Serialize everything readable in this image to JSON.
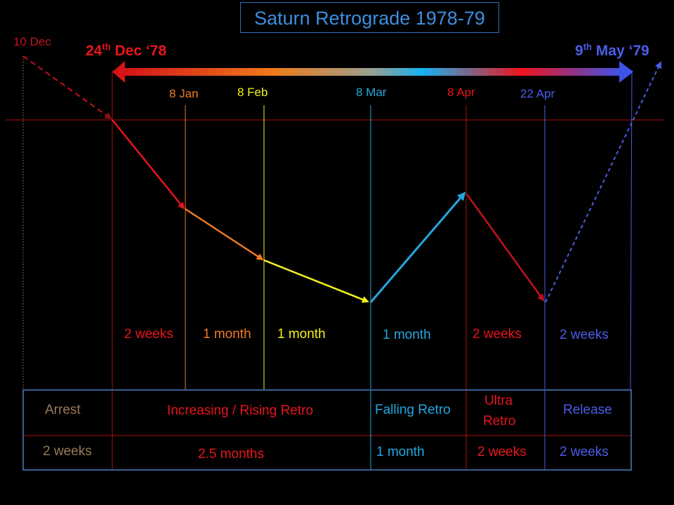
{
  "title": "Saturn Retrograde 1978-79",
  "start_label": "10 Dec",
  "arrow": {
    "left_day": "24",
    "left_sup": "th",
    "left_rest": " Dec ‘78",
    "right_day": "9",
    "right_sup": "th",
    "right_rest": " May ‘79"
  },
  "dates": [
    "8 Jan",
    "8 Feb",
    "8 Mar",
    "8 Apr",
    "22 Apr"
  ],
  "durations": [
    "2 weeks",
    "1 month",
    "1 month",
    "1 month",
    "2 weeks",
    "2 weeks"
  ],
  "phases": {
    "arrest": "Arrest",
    "rising": "Increasing / Rising Retro",
    "falling": "Falling Retro",
    "ultra_line1": "Ultra",
    "ultra_line2": "Retro",
    "release": "Release"
  },
  "phase_durations": {
    "arrest": "2 weeks",
    "rising": "2.5 months",
    "falling": "1 month",
    "ultra": "2 weeks",
    "release": "2 weeks"
  },
  "colors": {
    "red": "#e8141c",
    "orange": "#f07a24",
    "yellow": "#f2f21e",
    "cyan": "#23a7e0",
    "crimson": "#c2121e",
    "blue": "#4a5de6",
    "brown": "#9b7a58",
    "dark_red": "#8c0f14"
  }
}
